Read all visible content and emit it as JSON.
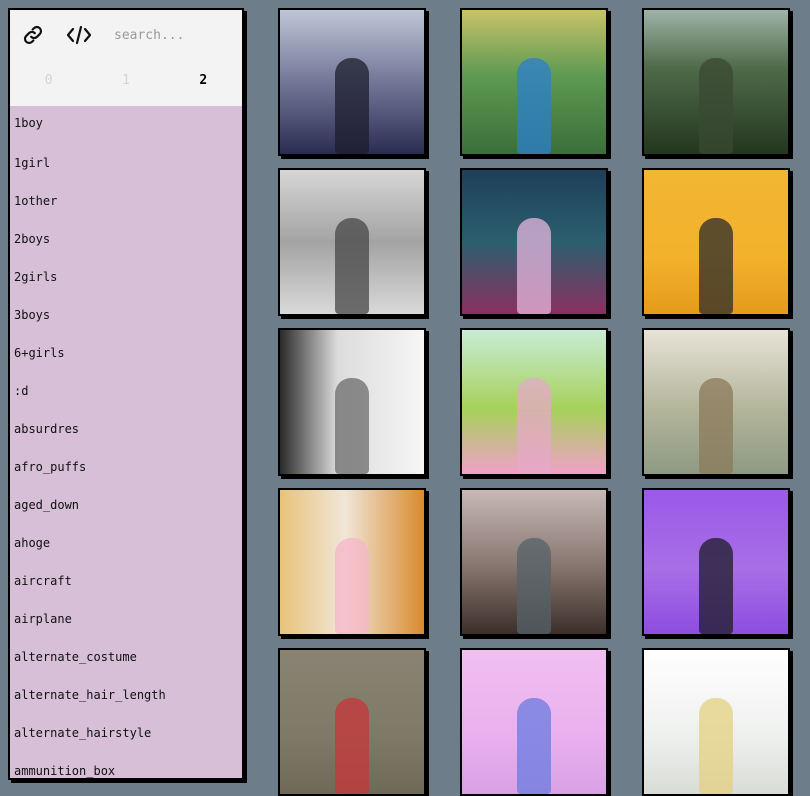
{
  "toolbar": {
    "link_icon": "link-icon",
    "code_icon": "code-icon",
    "search_placeholder": "search..."
  },
  "pagination": {
    "pages": [
      "0",
      "1",
      "2"
    ],
    "active": 2
  },
  "tags": [
    "1boy",
    "1girl",
    "1other",
    "2boys",
    "2girls",
    "3boys",
    "6+girls",
    ":d",
    "absurdres",
    "afro_puffs",
    "aged_down",
    "ahoge",
    "aircraft",
    "airplane",
    "alternate_costume",
    "alternate_hair_length",
    "alternate_hairstyle",
    "ammunition_box"
  ],
  "thumbnails": [
    {
      "bg": "linear-gradient(180deg,#bfc6d6 0%,#7a7f9e 45%,#2a2d52 100%)",
      "fig": "#1d1d2e"
    },
    {
      "bg": "linear-gradient(180deg,#c8c36a 0%,#5f9a52 45%,#3b6f3a 100%)",
      "fig": "#2b7fd0"
    },
    {
      "bg": "linear-gradient(180deg,#9fb3a8 0%,#4f6b49 40%,#24361f 100%)",
      "fig": "#3a4a33"
    },
    {
      "bg": "linear-gradient(180deg,#d6d6d6 0%,#a3a3a3 50%,#d9d9d9 100%)",
      "fig": "#474747"
    },
    {
      "bg": "linear-gradient(180deg,#1e3f5a 0%,#2b5f6e 50%,#8a3060 100%)",
      "fig": "#e7b7df"
    },
    {
      "bg": "linear-gradient(180deg,#f2b632 0%,#f3b22c 60%,#e49b1a 100%)",
      "fig": "#2b2b2b"
    },
    {
      "bg": "linear-gradient(90deg,#2a2a2a 0%,#dcdcdc 40%,#f6f6f6 100%)",
      "fig": "#6b6b6b"
    },
    {
      "bg": "linear-gradient(180deg,#c8ecd6 0%,#a6d15a 55%,#f0a0c8 100%)",
      "fig": "#e5a8c8"
    },
    {
      "bg": "linear-gradient(180deg,#e7e2d8 0%,#b3b59a 55%,#8e9a84 100%)",
      "fig": "#8b7a5a"
    },
    {
      "bg": "linear-gradient(90deg,#e8c37a 0%,#f0e6d8 45%,#d98a2e 100%)",
      "fig": "#f5b5c8"
    },
    {
      "bg": "linear-gradient(180deg,#c7b8b6 0%,#8b7a73 50%,#3c2f2b 100%)",
      "fig": "#55626a"
    },
    {
      "bg": "linear-gradient(180deg,#9b59e8 0%,#a86ee6 55%,#8d4de0 100%)",
      "fig": "#1c1c28"
    },
    {
      "bg": "linear-gradient(180deg,#8a8374 0%,#7d7a66 60%,#6e6a58 100%)",
      "fig": "#c8353a"
    },
    {
      "bg": "linear-gradient(180deg,#f0bff0 0%,#e9b0ee 60%,#d9a0e4 100%)",
      "fig": "#6a7be0"
    },
    {
      "bg": "linear-gradient(180deg,#ffffff 0%,#eef0ee 60%,#d8dcd6 100%)",
      "fig": "#e4d080"
    }
  ]
}
